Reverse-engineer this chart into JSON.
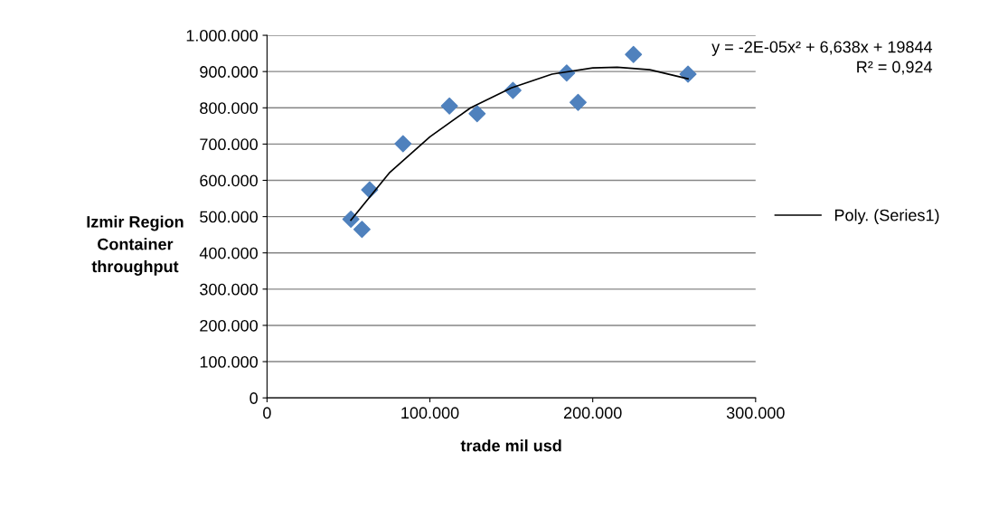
{
  "chart_data": {
    "type": "scatter",
    "xlabel": "trade mil usd",
    "ylabel": "Izmir Region\nContainer\nthroughput",
    "series": [
      {
        "color": "#4f81bd",
        "marker": "diamond",
        "x": [
          51500,
          58300,
          63000,
          83500,
          112000,
          129000,
          151000,
          184000,
          191000,
          225000,
          258500
        ],
        "values": [
          493000,
          465000,
          574000,
          701000,
          805000,
          784000,
          848000,
          896000,
          815000,
          947000,
          893000
        ]
      },
      {
        "type": "line",
        "name": "Poly. (Series1)",
        "color": "#000000",
        "marker": "none",
        "line_style": "solid",
        "x": [
          51500,
          75000,
          100000,
          125000,
          150000,
          175000,
          200000,
          215000,
          235000,
          258500
        ],
        "values": [
          490000,
          620000,
          720000,
          800000,
          855000,
          893000,
          910000,
          912000,
          905000,
          880000
        ]
      }
    ],
    "annotations": [
      "y = -2E-05x² + 6,638x + 19844\nR² = 0,924"
    ],
    "xlim": [
      0,
      300000
    ],
    "xticks": [
      0,
      {
        "value": 100000,
        "label": "100.000"
      },
      {
        "value": 200000,
        "label": "200.000"
      },
      {
        "value": 300000,
        "label": "300.000"
      }
    ],
    "ylim": [
      0,
      1000000
    ],
    "yticks": [
      0,
      {
        "value": 100000,
        "label": "100.000"
      },
      {
        "value": 200000,
        "label": "200.000"
      },
      {
        "value": 300000,
        "label": "300.000"
      },
      {
        "value": 400000,
        "label": "400.000"
      },
      {
        "value": 500000,
        "label": "500.000"
      },
      {
        "value": 600000,
        "label": "600.000"
      },
      {
        "value": 700000,
        "label": "700.000"
      },
      {
        "value": 800000,
        "label": "800.000"
      },
      {
        "value": 900000,
        "label": "900.000"
      },
      {
        "value": 1000000,
        "label": "1.000.000"
      }
    ],
    "grid": "y",
    "legend": "right"
  }
}
